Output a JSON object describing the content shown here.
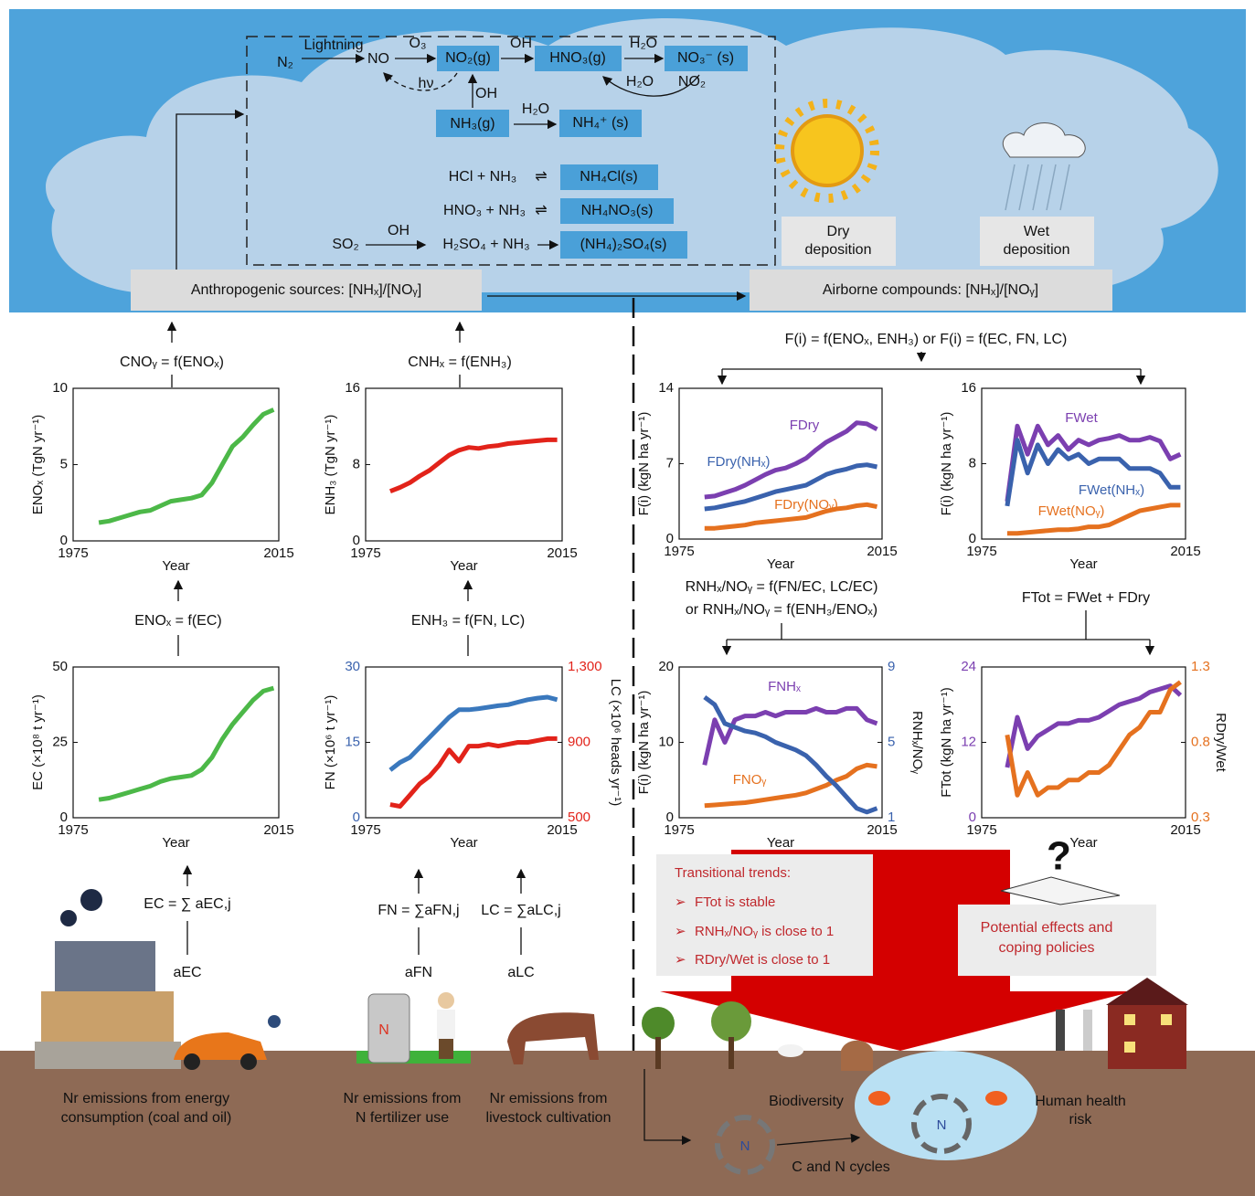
{
  "reactions": {
    "n2": "N₂",
    "lightning": "Lightning",
    "no": "NO",
    "o3": "O₃",
    "no2g": "NO₂(g)",
    "oh1": "OH",
    "hno3g": "HNO₃(g)",
    "h2o1": "H₂O",
    "no3s": "NO₃⁻ (s)",
    "hv": "hν",
    "oh2": "OH",
    "h2o2": "H₂O",
    "no2": "NO₂",
    "nh3g": "NH₃(g)",
    "h2o3": "H₂O",
    "nh4s": "NH₄⁺ (s)",
    "hcl": "HCl + NH₃",
    "eq1": "⇌",
    "nh4cl": "NH₄Cl(s)",
    "hno3nh3": "HNO₃ + NH₃",
    "eq2": "⇌",
    "nh4no3": "NH₄NO₃(s)",
    "so2": "SO₂",
    "oh3": "OH",
    "h2so4": "H₂SO₄ + NH₃",
    "nh42so4": "(NH₄)₂SO₄(s)"
  },
  "boxes": {
    "anthropogenic": "Anthropogenic sources: [NHₓ]/[NOᵧ]",
    "airborne": "Airborne compounds: [NHₓ]/[NOᵧ]",
    "dry": [
      "Dry",
      "deposition"
    ],
    "wet": [
      "Wet",
      "deposition"
    ]
  },
  "equations": {
    "c_noy": "CNOᵧ = f(ENOₓ)",
    "c_nhx": "CNHₓ = f(ENH₃)",
    "e_nox": "ENOₓ = f(EC)",
    "e_nh3": "ENH₃ = f(FN, LC)",
    "e_c": "EC = ∑ aEC,j",
    "a_ec": "aEC",
    "f_n": "FN = ∑aFN,j",
    "a_fn": "aFN",
    "l_c": "LC = ∑aLC,j",
    "a_lc": "aLC",
    "f_i": "F(i) = f(ENOₓ, ENH₃) or F(i) = f(EC, FN, LC)",
    "r1": "RNHₓ/NOᵧ = f(FN/EC, LC/EC)",
    "r2": "or RNHₓ/NOᵧ = f(ENH₃/ENOₓ)",
    "f_tot": "FTot = FWet + FDry"
  },
  "trends": {
    "title": "Transitional trends:",
    "items": [
      "FTot is stable",
      "RNHₓ/NOᵧ is close to 1",
      "RDry/Wet is close to 1"
    ]
  },
  "effects": [
    "Potential effects and",
    "coping policies"
  ],
  "ground": {
    "energy": [
      "Nr emissions from energy",
      "consumption (coal and oil)"
    ],
    "fertilizer": [
      "Nr emissions from",
      "N fertilizer use"
    ],
    "livestock": [
      "Nr emissions from",
      "livestock cultivation"
    ],
    "biodiversity": "Biodiversity",
    "health": [
      "Human health",
      "risk"
    ],
    "cycles": "C and N cycles",
    "bag": "N",
    "cycle_n1": "N",
    "cycle_n2": "N"
  },
  "chart_data": [
    {
      "type": "line",
      "xlabel": "Year",
      "ylabel": "ENOₓ (TgN yr⁻¹)",
      "x": [
        1980,
        1982,
        1984,
        1986,
        1988,
        1990,
        1992,
        1994,
        1996,
        1998,
        2000,
        2002,
        2004,
        2006,
        2008,
        2010,
        2012,
        2014
      ],
      "xlim": [
        1975,
        2015
      ],
      "xticks": [
        1975,
        2015
      ],
      "ylim": [
        0,
        10
      ],
      "yticks": [
        0,
        5,
        10
      ],
      "series": [
        {
          "color": "#4cb848",
          "values": [
            1.2,
            1.3,
            1.5,
            1.7,
            1.9,
            2.0,
            2.3,
            2.6,
            2.7,
            2.8,
            3.0,
            3.8,
            5.0,
            6.2,
            6.8,
            7.6,
            8.3,
            8.6
          ]
        }
      ]
    },
    {
      "type": "line",
      "xlabel": "Year",
      "ylabel": "ENH₃ (TgN yr⁻¹)",
      "x": [
        1980,
        1982,
        1984,
        1986,
        1988,
        1990,
        1992,
        1994,
        1996,
        1998,
        2000,
        2002,
        2004,
        2006,
        2008,
        2010,
        2012,
        2014
      ],
      "xlim": [
        1975,
        2015
      ],
      "xticks": [
        1975,
        2015
      ],
      "ylim": [
        0,
        16
      ],
      "yticks": [
        0,
        8,
        16
      ],
      "series": [
        {
          "color": "#e2231a",
          "values": [
            5.2,
            5.6,
            6.1,
            6.8,
            7.4,
            8.2,
            9.0,
            9.5,
            9.8,
            9.7,
            9.9,
            10.0,
            10.2,
            10.3,
            10.4,
            10.5,
            10.6,
            10.6
          ]
        }
      ]
    },
    {
      "type": "line",
      "xlabel": "Year",
      "ylabel": "EC (×10⁸ t yr⁻¹)",
      "x": [
        1980,
        1982,
        1984,
        1986,
        1988,
        1990,
        1992,
        1994,
        1996,
        1998,
        2000,
        2002,
        2004,
        2006,
        2008,
        2010,
        2012,
        2014
      ],
      "xlim": [
        1975,
        2015
      ],
      "xticks": [
        1975,
        2015
      ],
      "ylim": [
        0,
        50
      ],
      "yticks": [
        0,
        25,
        50
      ],
      "series": [
        {
          "color": "#4cb848",
          "values": [
            6,
            6.5,
            7.5,
            8.5,
            9.5,
            10.5,
            12,
            13,
            13.5,
            14,
            16,
            20,
            26,
            31,
            35,
            39,
            42,
            43
          ]
        }
      ]
    },
    {
      "type": "line",
      "xlabel": "Year",
      "ylabel": "FN (×10⁶ t yr⁻¹)",
      "y2label": "LC (×10⁶ heads yr⁻¹)",
      "x": [
        1980,
        1982,
        1984,
        1986,
        1988,
        1990,
        1992,
        1994,
        1996,
        1998,
        2000,
        2002,
        2004,
        2006,
        2008,
        2010,
        2012,
        2014
      ],
      "xlim": [
        1975,
        2015
      ],
      "xticks": [
        1975,
        2015
      ],
      "ylim": [
        0,
        30
      ],
      "yticks": [
        0,
        15,
        30
      ],
      "y2lim": [
        500,
        1300
      ],
      "y2ticks": [
        500,
        900,
        {
          "value": 1300,
          "label": "1,300"
        }
      ],
      "ytick_color": "#3a62ad",
      "y2tick_color": "#e2231a",
      "series": [
        {
          "color": "#3a78bd",
          "values": [
            9.5,
            11,
            12,
            14,
            16,
            18,
            20,
            21.5,
            21.5,
            21.7,
            22,
            22.3,
            22.5,
            23,
            23.5,
            23.8,
            24,
            23.5
          ]
        },
        {
          "color": "#e2231a",
          "axis": "y2",
          "values": [
            570,
            560,
            620,
            680,
            720,
            780,
            860,
            800,
            880,
            880,
            890,
            880,
            890,
            900,
            900,
            910,
            920,
            920
          ]
        }
      ]
    },
    {
      "type": "line",
      "xlabel": "Year",
      "ylabel": "F(i) (kgN ha yr⁻¹)",
      "x": [
        1980,
        1982,
        1984,
        1986,
        1988,
        1990,
        1992,
        1994,
        1996,
        1998,
        2000,
        2002,
        2004,
        2006,
        2008,
        2010,
        2012,
        2014
      ],
      "xlim": [
        1975,
        2015
      ],
      "xticks": [
        1975,
        2015
      ],
      "ylim": [
        0,
        14
      ],
      "yticks": [
        0,
        7,
        14
      ],
      "series": [
        {
          "name": "FDry",
          "color": "#7b3fb0",
          "values": [
            3.9,
            4.0,
            4.3,
            4.6,
            5.0,
            5.5,
            6.0,
            6.4,
            6.6,
            7.0,
            7.5,
            8.3,
            9.0,
            9.5,
            10.0,
            10.8,
            10.7,
            10.2
          ]
        },
        {
          "name": "FDry(NHₓ)",
          "color": "#3a62ad",
          "values": [
            2.8,
            2.9,
            3.1,
            3.3,
            3.5,
            3.8,
            4.1,
            4.4,
            4.6,
            4.8,
            5.0,
            5.5,
            6.0,
            6.3,
            6.5,
            6.8,
            6.9,
            6.7
          ]
        },
        {
          "name": "FDry(NOᵧ)",
          "color": "#e5711f",
          "values": [
            1.0,
            1.0,
            1.1,
            1.2,
            1.3,
            1.5,
            1.6,
            1.7,
            1.8,
            1.9,
            2.0,
            2.3,
            2.6,
            2.8,
            2.9,
            3.1,
            3.2,
            3.0
          ]
        }
      ]
    },
    {
      "type": "line",
      "xlabel": "Year",
      "ylabel": "F(i) (kgN ha yr⁻¹)",
      "x": [
        1980,
        1982,
        1984,
        1986,
        1988,
        1990,
        1992,
        1994,
        1996,
        1998,
        2000,
        2002,
        2004,
        2006,
        2008,
        2010,
        2012,
        2014
      ],
      "xlim": [
        1975,
        2015
      ],
      "xticks": [
        1975,
        2015
      ],
      "ylim": [
        0,
        16
      ],
      "yticks": [
        0,
        8,
        16
      ],
      "series": [
        {
          "name": "FWet",
          "color": "#7b3fb0",
          "values": [
            4,
            12,
            9,
            12,
            10,
            11,
            9.5,
            10.5,
            10,
            10.5,
            10.7,
            11,
            10.5,
            10.5,
            10.8,
            10.4,
            8.5,
            9
          ]
        },
        {
          "name": "FWet(NHₓ)",
          "color": "#3a62ad",
          "values": [
            3.5,
            10.5,
            7,
            10,
            8,
            9.5,
            8.5,
            9,
            8,
            8.5,
            8.5,
            8.5,
            7.5,
            7.5,
            7.5,
            7,
            5.5,
            5.5
          ]
        },
        {
          "name": "FWet(NOᵧ)",
          "color": "#e5711f",
          "values": [
            0.6,
            0.6,
            0.7,
            0.8,
            0.9,
            1.0,
            1.0,
            1.1,
            1.3,
            1.3,
            1.5,
            2.0,
            2.5,
            3.0,
            3.2,
            3.4,
            3.6,
            3.6
          ]
        }
      ]
    },
    {
      "type": "line",
      "xlabel": "Year",
      "ylabel": "F(i) (kgN ha yr⁻¹)",
      "y2label": "RNHₓ/NOᵧ",
      "x": [
        1980,
        1982,
        1984,
        1986,
        1988,
        1990,
        1992,
        1994,
        1996,
        1998,
        2000,
        2002,
        2004,
        2006,
        2008,
        2010,
        2012,
        2014
      ],
      "xlim": [
        1975,
        2015
      ],
      "xticks": [
        1975,
        2015
      ],
      "ylim": [
        0,
        20
      ],
      "yticks": [
        0,
        10,
        20
      ],
      "y2lim": [
        1,
        9
      ],
      "y2ticks": [
        1,
        5,
        9
      ],
      "y2tick_color": "#3a62ad",
      "series": [
        {
          "name": "FNHₓ",
          "color": "#7b3fb0",
          "values": [
            7,
            13,
            10,
            13,
            13.5,
            13.5,
            14,
            13.5,
            14,
            14,
            14,
            14.5,
            14,
            14,
            14.5,
            14.5,
            13,
            12.5
          ]
        },
        {
          "name": "FNOᵧ",
          "color": "#e5711f",
          "values": [
            1.6,
            1.7,
            1.8,
            1.9,
            2.0,
            2.2,
            2.4,
            2.6,
            2.8,
            3.0,
            3.3,
            3.8,
            4.3,
            5.0,
            5.5,
            6.5,
            7.0,
            6.8
          ]
        },
        {
          "color": "#3a62ad",
          "axis": "y2",
          "values": [
            7.4,
            7.0,
            6.0,
            5.8,
            5.6,
            5.5,
            5.3,
            5.0,
            4.8,
            4.6,
            4.3,
            3.8,
            3.2,
            2.7,
            2.1,
            1.5,
            1.3,
            1.5
          ]
        }
      ]
    },
    {
      "type": "line",
      "xlabel": "Year",
      "ylabel": "FTot (kgN ha yr⁻¹)",
      "y2label": "RDry/Wet",
      "x": [
        1980,
        1982,
        1984,
        1986,
        1988,
        1990,
        1992,
        1994,
        1996,
        1998,
        2000,
        2002,
        2004,
        2006,
        2008,
        2010,
        2012,
        2014
      ],
      "xlim": [
        1975,
        2015
      ],
      "xticks": [
        1975,
        2015
      ],
      "ylim": [
        0,
        24
      ],
      "yticks": [
        0,
        12,
        24
      ],
      "y2lim": [
        0.3,
        1.3
      ],
      "y2ticks": [
        0.3,
        0.8,
        1.3
      ],
      "ytick_color": "#7b3fb0",
      "y2tick_color": "#e5711f",
      "series": [
        {
          "color": "#7b3fb0",
          "values": [
            8,
            16,
            11,
            13,
            14,
            15,
            15,
            15.5,
            15.5,
            16,
            17,
            18,
            18.5,
            19,
            20,
            20.5,
            21,
            19.5
          ]
        },
        {
          "color": "#e5711f",
          "axis": "y2",
          "values": [
            0.85,
            0.45,
            0.6,
            0.45,
            0.5,
            0.5,
            0.55,
            0.55,
            0.6,
            0.6,
            0.65,
            0.75,
            0.85,
            0.9,
            1.0,
            1.0,
            1.15,
            1.2
          ]
        }
      ]
    }
  ]
}
